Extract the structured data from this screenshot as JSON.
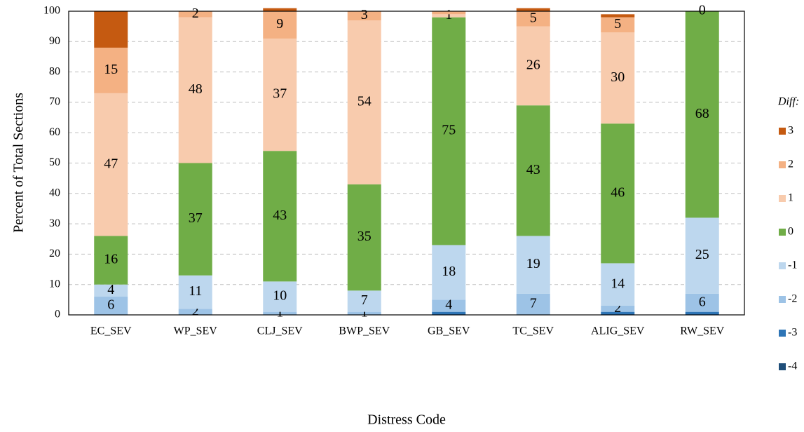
{
  "chart_data": {
    "type": "bar",
    "stacked": true,
    "x_label": "Distress Code",
    "y_label": "Percent of Total Sections",
    "legend_title": "Diff:",
    "categories": [
      "EC_SEV",
      "WP_SEV",
      "CLJ_SEV",
      "BWP_SEV",
      "GB_SEV",
      "TC_SEV",
      "ALIG_SEV",
      "RW_SEV"
    ],
    "series": [
      {
        "name": "-4",
        "color": "#1f4e79",
        "values": [
          0,
          0,
          0,
          0,
          0,
          0,
          0,
          0
        ],
        "value_labels": [
          null,
          null,
          null,
          null,
          null,
          null,
          null,
          null
        ]
      },
      {
        "name": "-3",
        "color": "#2e75b6",
        "values": [
          0,
          0,
          0,
          0,
          1,
          0,
          1,
          1
        ],
        "value_labels": [
          null,
          null,
          null,
          null,
          null,
          null,
          null,
          null
        ]
      },
      {
        "name": "-2",
        "color": "#9dc3e6",
        "values": [
          6,
          2,
          1,
          1,
          4,
          7,
          2,
          6
        ],
        "value_labels": [
          "6",
          "2",
          "1",
          "1",
          "4",
          "7",
          "2",
          "6"
        ]
      },
      {
        "name": "-1",
        "color": "#bdd7ee",
        "values": [
          4,
          11,
          10,
          7,
          18,
          19,
          14,
          25
        ],
        "value_labels": [
          "4",
          "11",
          "10",
          "7",
          "18",
          "19",
          "14",
          "25"
        ]
      },
      {
        "name": "0",
        "color": "#70ad47",
        "values": [
          16,
          37,
          43,
          35,
          75,
          43,
          46,
          68
        ],
        "value_labels": [
          "16",
          "37",
          "43",
          "35",
          "75",
          "43",
          "46",
          "68"
        ]
      },
      {
        "name": "1",
        "color": "#f8cbad",
        "values": [
          47,
          48,
          37,
          54,
          1,
          26,
          30,
          0
        ],
        "value_labels": [
          "47",
          "48",
          "37",
          "54",
          "1",
          "26",
          "30",
          "0"
        ]
      },
      {
        "name": "2",
        "color": "#f4b183",
        "values": [
          15,
          2,
          9,
          3,
          1,
          5,
          5,
          0
        ],
        "value_labels": [
          "15",
          "2",
          "9",
          "3",
          null,
          "5",
          "5",
          null
        ]
      },
      {
        "name": "3",
        "color": "#c55a11",
        "values": [
          12,
          0,
          1,
          0,
          0,
          1,
          1,
          0
        ],
        "value_labels": [
          null,
          null,
          null,
          null,
          null,
          null,
          null,
          null
        ]
      }
    ],
    "ylim": [
      0,
      100
    ],
    "yticks": [
      0,
      10,
      20,
      30,
      40,
      50,
      60,
      70,
      80,
      90,
      100
    ],
    "grid": true,
    "legend": "right"
  }
}
